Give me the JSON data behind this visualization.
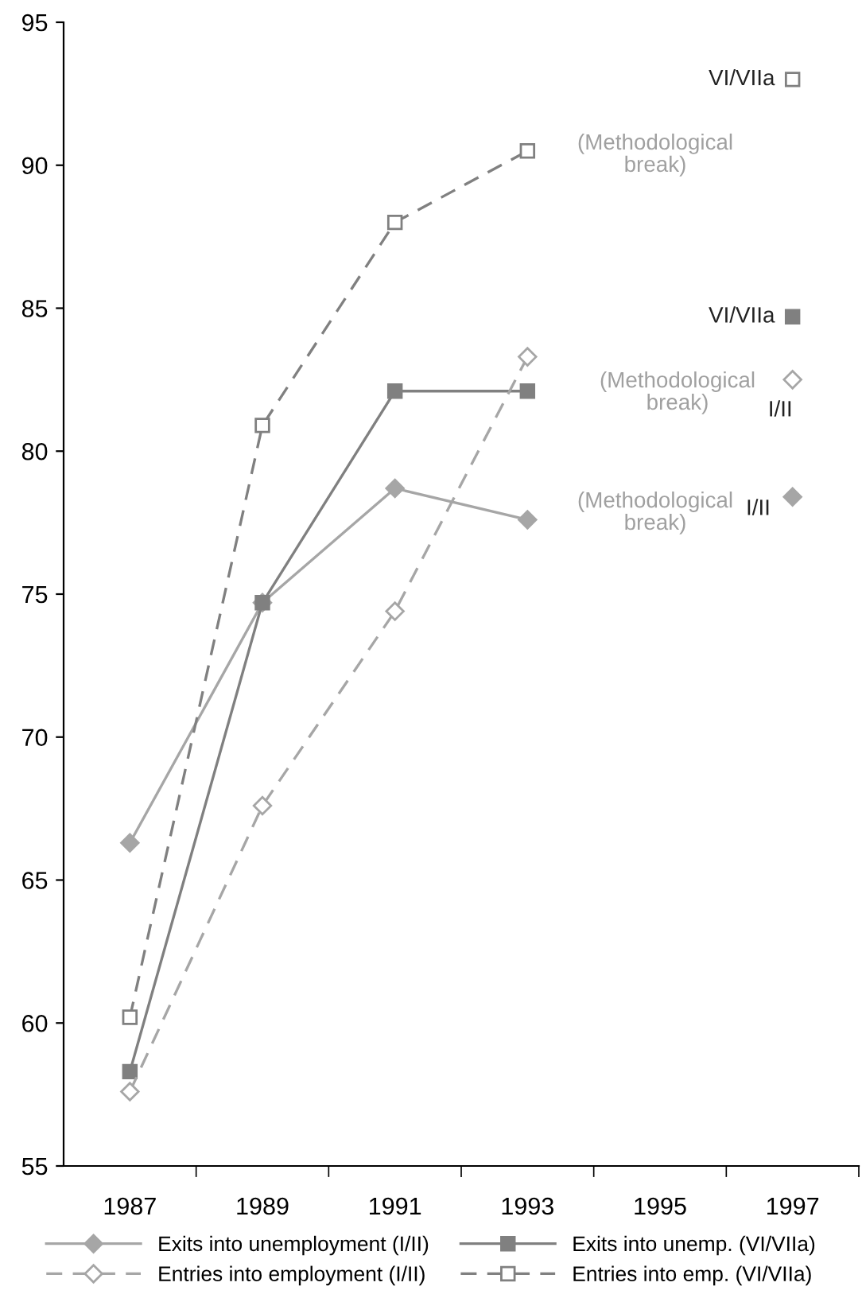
{
  "chart_data": {
    "type": "line",
    "categories": [
      "1987",
      "1989",
      "1991",
      "1993",
      "1995",
      "1997"
    ],
    "series": [
      {
        "name": "Exits into unemployment (I/II)",
        "color": "#a6a6a6",
        "marker": "diamond",
        "line_style": "solid",
        "values": [
          66.3,
          74.7,
          78.7,
          77.6,
          null,
          78.4
        ]
      },
      {
        "name": "Exits into unemp. (VI/VIIa)",
        "color": "#808080",
        "marker": "square",
        "line_style": "solid",
        "values": [
          58.3,
          74.7,
          82.1,
          82.1,
          null,
          84.7
        ]
      },
      {
        "name": "Entries into employment (I/II)",
        "color": "#a6a6a6",
        "marker": "diamond",
        "line_style": "dashed",
        "values": [
          57.6,
          67.6,
          74.4,
          83.3,
          null,
          82.5
        ]
      },
      {
        "name": "Entries into emp. (VI/VIIa)",
        "color": "#808080",
        "marker": "square",
        "line_style": "dashed",
        "values": [
          60.2,
          80.9,
          88.0,
          90.5,
          null,
          93.0
        ]
      }
    ],
    "ylim": [
      55,
      95
    ],
    "yticks": [
      55,
      60,
      65,
      70,
      75,
      80,
      85,
      90,
      95
    ],
    "grid": false,
    "legend": "bottom",
    "annotations": [
      "(Methodological\nbreak)",
      "(Methodological\nbreak)",
      "(Methodological\nbreak)",
      {
        "text": "VI/VIIa",
        "x": "1997",
        "y": 93.0
      },
      {
        "text": "VI/VIIa",
        "x": "1997",
        "y": 84.7
      },
      {
        "text": "I/II",
        "x": "1997",
        "y": 82.5
      },
      {
        "text": "I/II",
        "x": "1997",
        "y": 78.2
      }
    ]
  }
}
